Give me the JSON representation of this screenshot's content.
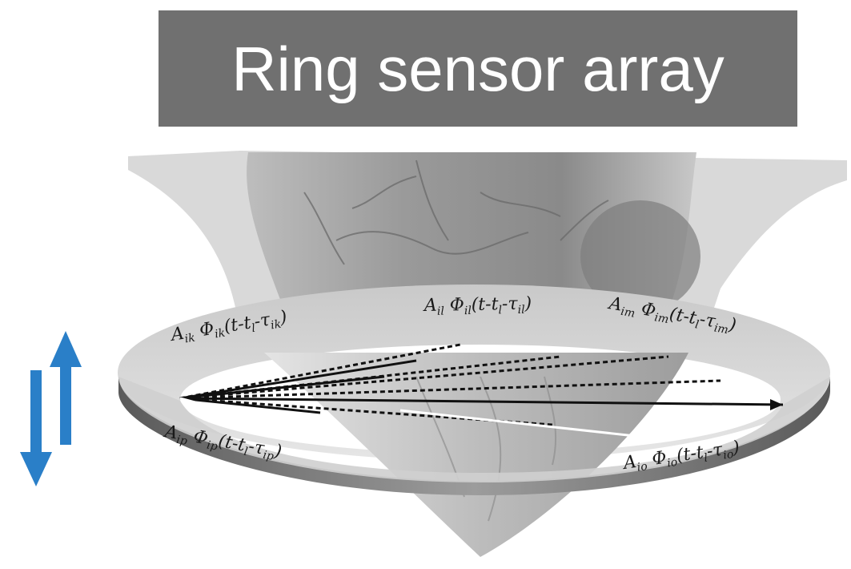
{
  "title": "Ring sensor array",
  "labels": {
    "ik": "A",
    "ik_phi": "Φ",
    "ik_arg": "(t-t",
    "ik_tau": "-τ",
    "ik_sub": "ik",
    "il_sub": "il",
    "im_sub": "im",
    "ip_sub": "ip",
    "io_sub": "io",
    "close": ")",
    "l_sub": "l"
  },
  "colors": {
    "title_bg": "#707070",
    "title_text": "#ffffff",
    "arrow_blue": "#2a7fc8",
    "ring_light": "#d8d8d8",
    "ring_dark": "#6a6a6a"
  },
  "icons": {
    "arrow_up": "arrow-up-icon",
    "arrow_down": "arrow-down-icon"
  }
}
